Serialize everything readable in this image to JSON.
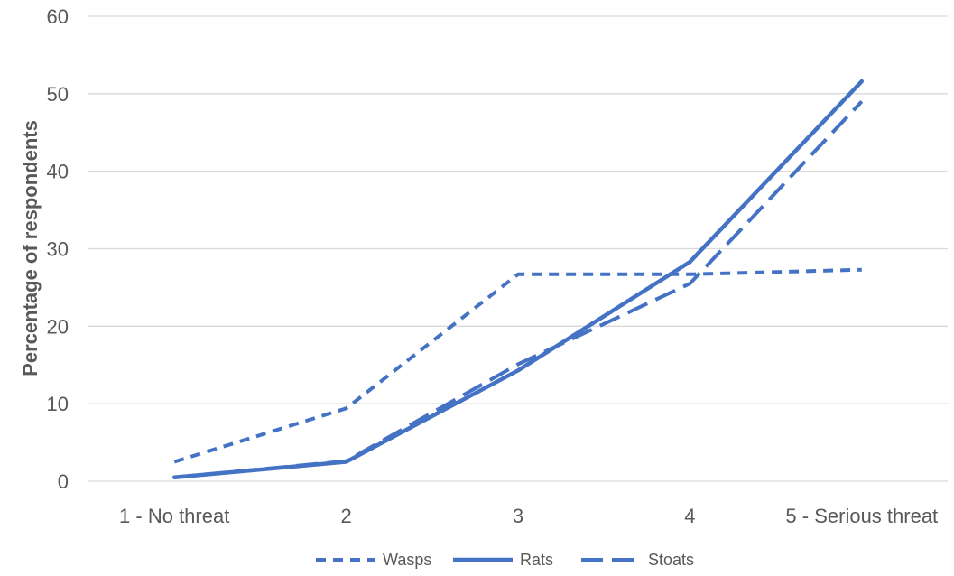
{
  "chart_data": {
    "type": "line",
    "categories": [
      "1 - No threat",
      "2",
      "3",
      "4",
      "5 - Serious threat"
    ],
    "ylabel": "Percentage of respondents",
    "xlabel": "",
    "ylim": [
      0,
      60
    ],
    "yticks": [
      "0",
      "10",
      "20",
      "30",
      "40",
      "50",
      "60"
    ],
    "grid": true,
    "legend_position": "bottom",
    "series": [
      {
        "name": "Wasps",
        "values": [
          2.5,
          9.4,
          26.7,
          26.7,
          27.3
        ],
        "color": "#4472c4",
        "style": "dotted-dash"
      },
      {
        "name": "Rats",
        "values": [
          0.5,
          2.5,
          14.3,
          28.3,
          51.6
        ],
        "color": "#4472c4",
        "style": "solid"
      },
      {
        "name": "Stoats",
        "values": [
          0.5,
          2.6,
          15.1,
          25.5,
          49.0
        ],
        "color": "#4472c4",
        "style": "long-dash"
      }
    ]
  }
}
